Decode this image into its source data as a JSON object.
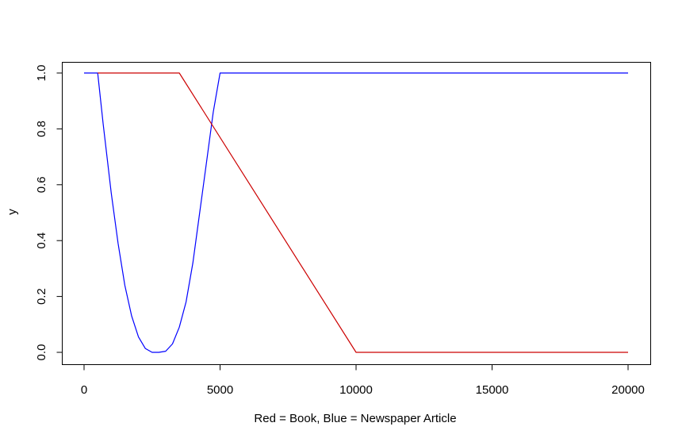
{
  "chart_data": {
    "type": "line",
    "title": "",
    "xlabel": "Red = Book, Blue = Newspaper Article",
    "ylabel": "y",
    "xlim": [
      0,
      20000
    ],
    "ylim": [
      0,
      1
    ],
    "grid": false,
    "legend": "none",
    "x_ticks": [
      0,
      5000,
      10000,
      15000,
      20000
    ],
    "x_tick_labels": [
      "0",
      "5000",
      "10000",
      "15000",
      "20000"
    ],
    "y_ticks": [
      0,
      0.2,
      0.4,
      0.6,
      0.8,
      1.0
    ],
    "y_tick_labels": [
      "0.0",
      "0.2",
      "0.4",
      "0.6",
      "0.8",
      "1.0"
    ],
    "series": [
      {
        "color": "#0000ff",
        "points": [
          [
            0,
            1.0
          ],
          [
            500,
            1.0
          ],
          [
            700,
            0.82
          ],
          [
            1000,
            0.57
          ],
          [
            1250,
            0.39
          ],
          [
            1500,
            0.24
          ],
          [
            1750,
            0.13
          ],
          [
            2000,
            0.055
          ],
          [
            2250,
            0.014
          ],
          [
            2500,
            0.0
          ],
          [
            2750,
            0.0
          ],
          [
            3000,
            0.004
          ],
          [
            3250,
            0.03
          ],
          [
            3500,
            0.09
          ],
          [
            3750,
            0.18
          ],
          [
            4000,
            0.32
          ],
          [
            4250,
            0.5
          ],
          [
            4500,
            0.68
          ],
          [
            4750,
            0.86
          ],
          [
            5000,
            1.0
          ],
          [
            20000,
            1.0
          ]
        ]
      },
      {
        "color": "#cc0000",
        "points": [
          [
            500,
            1.0
          ],
          [
            3500,
            1.0
          ],
          [
            10000,
            0.0
          ],
          [
            20000,
            0.0
          ]
        ]
      }
    ]
  }
}
